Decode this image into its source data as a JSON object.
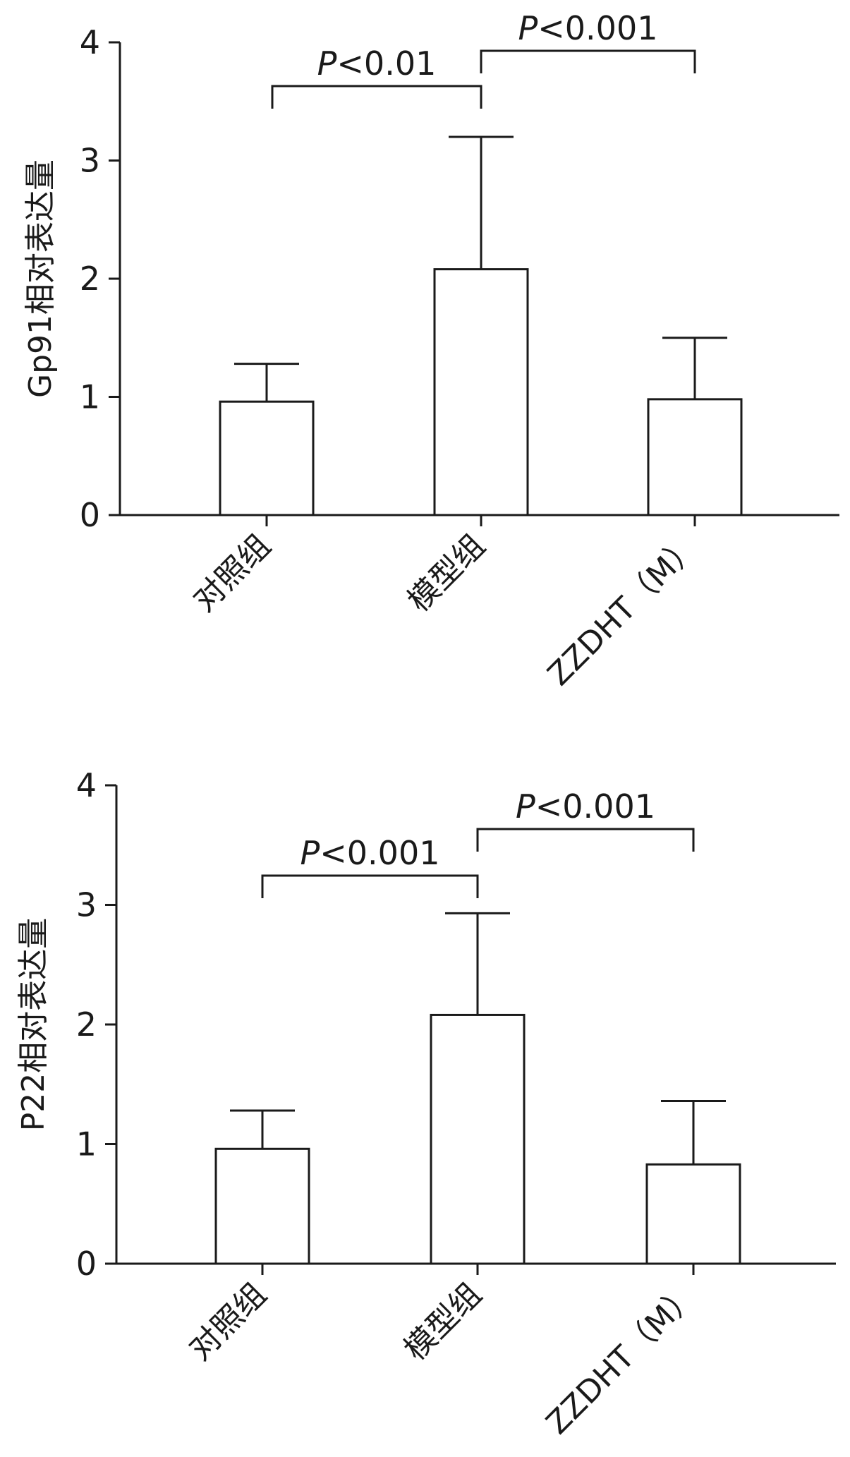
{
  "chart_data": [
    {
      "type": "bar",
      "categories": [
        "对照组",
        "模型组",
        "ZZDHT（M）"
      ],
      "values": [
        0.96,
        2.08,
        0.98
      ],
      "errors": [
        0.32,
        1.12,
        0.52
      ],
      "ylabel": "Gp91相对表达量",
      "ylim": [
        0,
        4
      ],
      "yticks": [
        0,
        1,
        2,
        3,
        4
      ],
      "grid": false,
      "significance": [
        {
          "from": 0,
          "to": 1,
          "prefix": "P",
          "label": "<0.01"
        },
        {
          "from": 1,
          "to": 2,
          "prefix": "P",
          "label": "<0.001"
        }
      ]
    },
    {
      "type": "bar",
      "categories": [
        "对照组",
        "模型组",
        "ZZDHT（M）"
      ],
      "values": [
        0.96,
        2.08,
        0.83
      ],
      "errors": [
        0.32,
        0.85,
        0.53
      ],
      "ylabel": "P22相对表达量",
      "ylim": [
        0,
        4
      ],
      "yticks": [
        0,
        1,
        2,
        3,
        4
      ],
      "grid": false,
      "significance": [
        {
          "from": 0,
          "to": 1,
          "prefix": "P",
          "label": "<0.001"
        },
        {
          "from": 1,
          "to": 2,
          "prefix": "P",
          "label": "<0.001"
        }
      ]
    }
  ]
}
